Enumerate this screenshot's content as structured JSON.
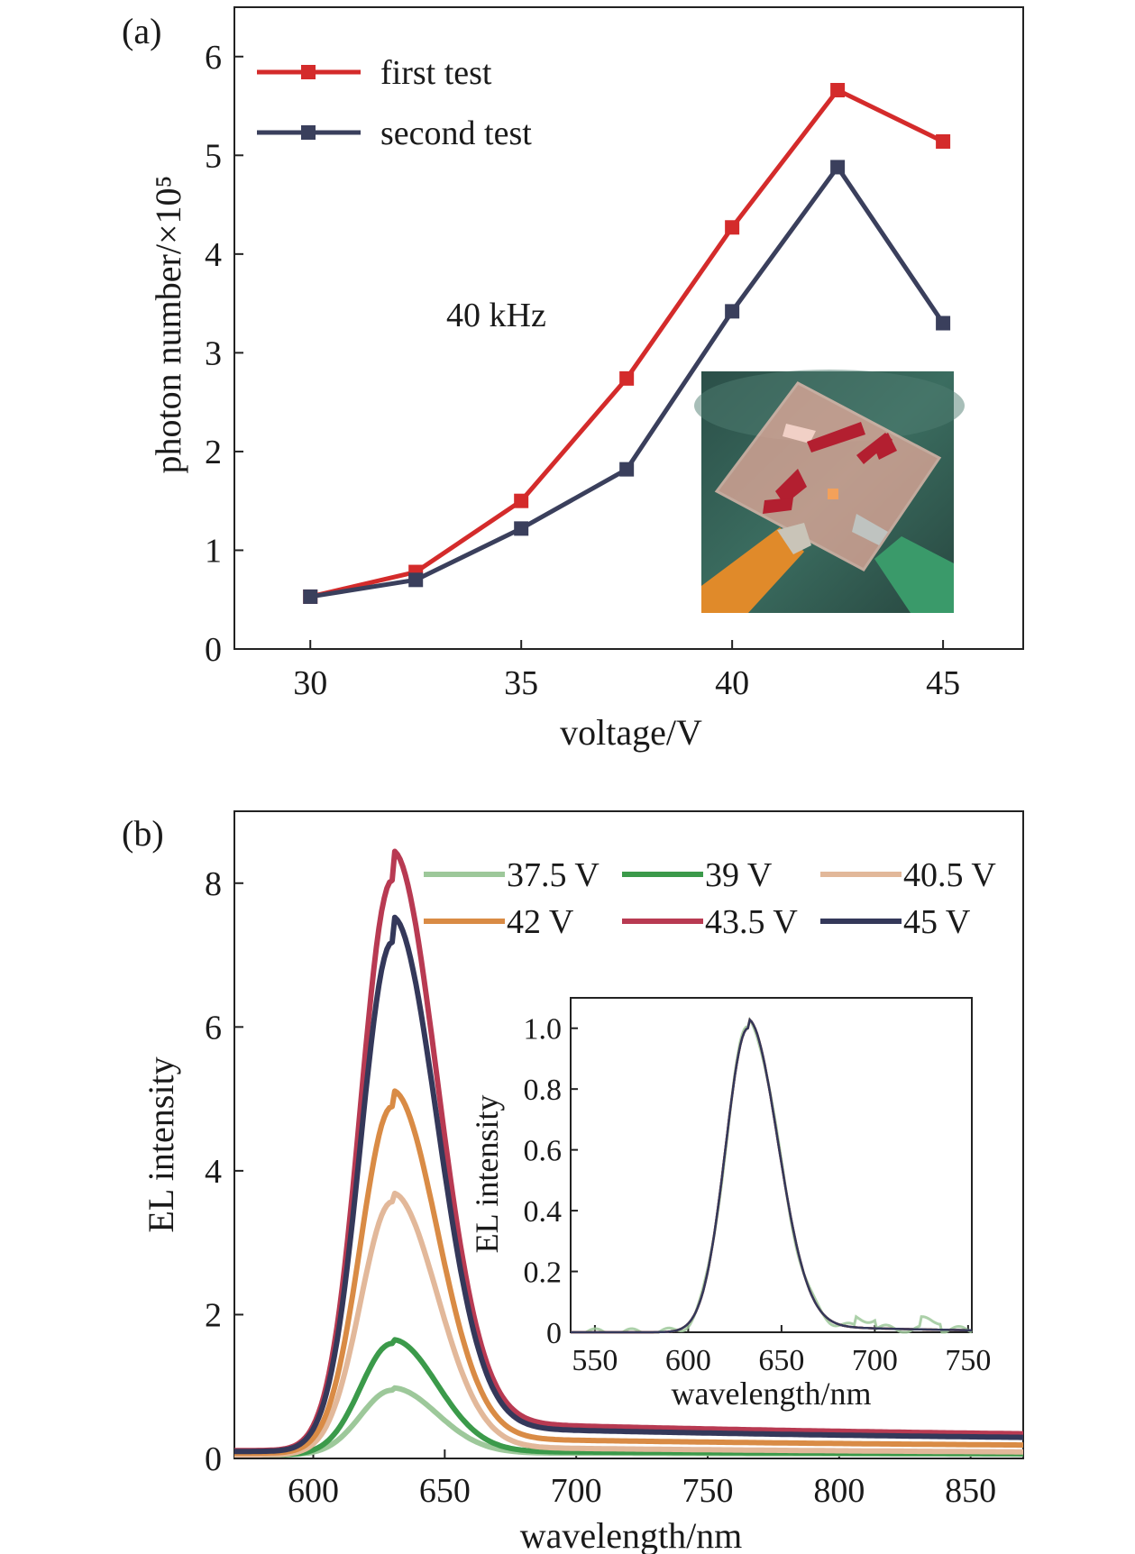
{
  "chart_data": [
    {
      "type": "line",
      "panel_label": "(a)",
      "xlabel": "voltage/V",
      "ylabel": "photon number/×10⁵",
      "xlim": [
        28.2,
        46.9
      ],
      "ylim": [
        0,
        6.5
      ],
      "x_ticks": [
        "30",
        "35",
        "40",
        "45"
      ],
      "y_ticks": [
        "0",
        "1",
        "2",
        "3",
        "4",
        "5",
        "6"
      ],
      "annotation": "40 kHz",
      "legend_position": "top-left",
      "x": [
        30,
        32.5,
        35,
        37.5,
        40,
        42.5,
        45
      ],
      "series": [
        {
          "name": "first test",
          "color": "#d42b2b",
          "marker": "square",
          "values": [
            0.53,
            0.78,
            1.5,
            2.74,
            4.27,
            5.66,
            5.14
          ]
        },
        {
          "name": "second test",
          "color": "#3a3f5c",
          "marker": "square",
          "values": [
            0.53,
            0.7,
            1.22,
            1.82,
            3.42,
            4.88,
            3.3
          ]
        }
      ],
      "inset": {
        "type": "photo",
        "subject": "device-photo",
        "colors": [
          "#2f5b50",
          "#e4a99a",
          "#b81f2f",
          "#e08a2a",
          "#3a9a6a"
        ]
      }
    },
    {
      "type": "line",
      "panel_label": "(b)",
      "xlabel": "wavelength/nm",
      "ylabel": "EL intensity",
      "xlim": [
        570,
        870
      ],
      "ylim": [
        0,
        9
      ],
      "x_ticks": [
        "600",
        "650",
        "700",
        "750",
        "800",
        "850"
      ],
      "y_ticks": [
        "0",
        "2",
        "4",
        "6",
        "8"
      ],
      "legend_position": "top-right",
      "peak_wavelength": 630,
      "series": [
        {
          "name": "37.5 V",
          "color": "#9dc89a",
          "peak": 0.9
        },
        {
          "name": "39 V",
          "color": "#3b9a4a",
          "peak": 1.55
        },
        {
          "name": "40.5 V",
          "color": "#e2b89a",
          "peak": 3.52
        },
        {
          "name": "42 V",
          "color": "#d98b45",
          "peak": 4.82
        },
        {
          "name": "43.5 V",
          "color": "#b83a52",
          "peak": 7.93
        },
        {
          "name": "45 V",
          "color": "#34385a",
          "peak": 7.08
        }
      ],
      "inset": {
        "type": "line",
        "xlabel": "wavelength/nm",
        "ylabel": "EL intensity",
        "xlim": [
          537,
          752
        ],
        "ylim": [
          0,
          1.1
        ],
        "x_ticks": [
          "550",
          "600",
          "650",
          "700",
          "750"
        ],
        "y_ticks": [
          "0",
          "0.2",
          "0.4",
          "0.6",
          "0.8",
          "1.0"
        ],
        "peak_wavelength": 632,
        "peak_value": 1.0
      }
    }
  ]
}
